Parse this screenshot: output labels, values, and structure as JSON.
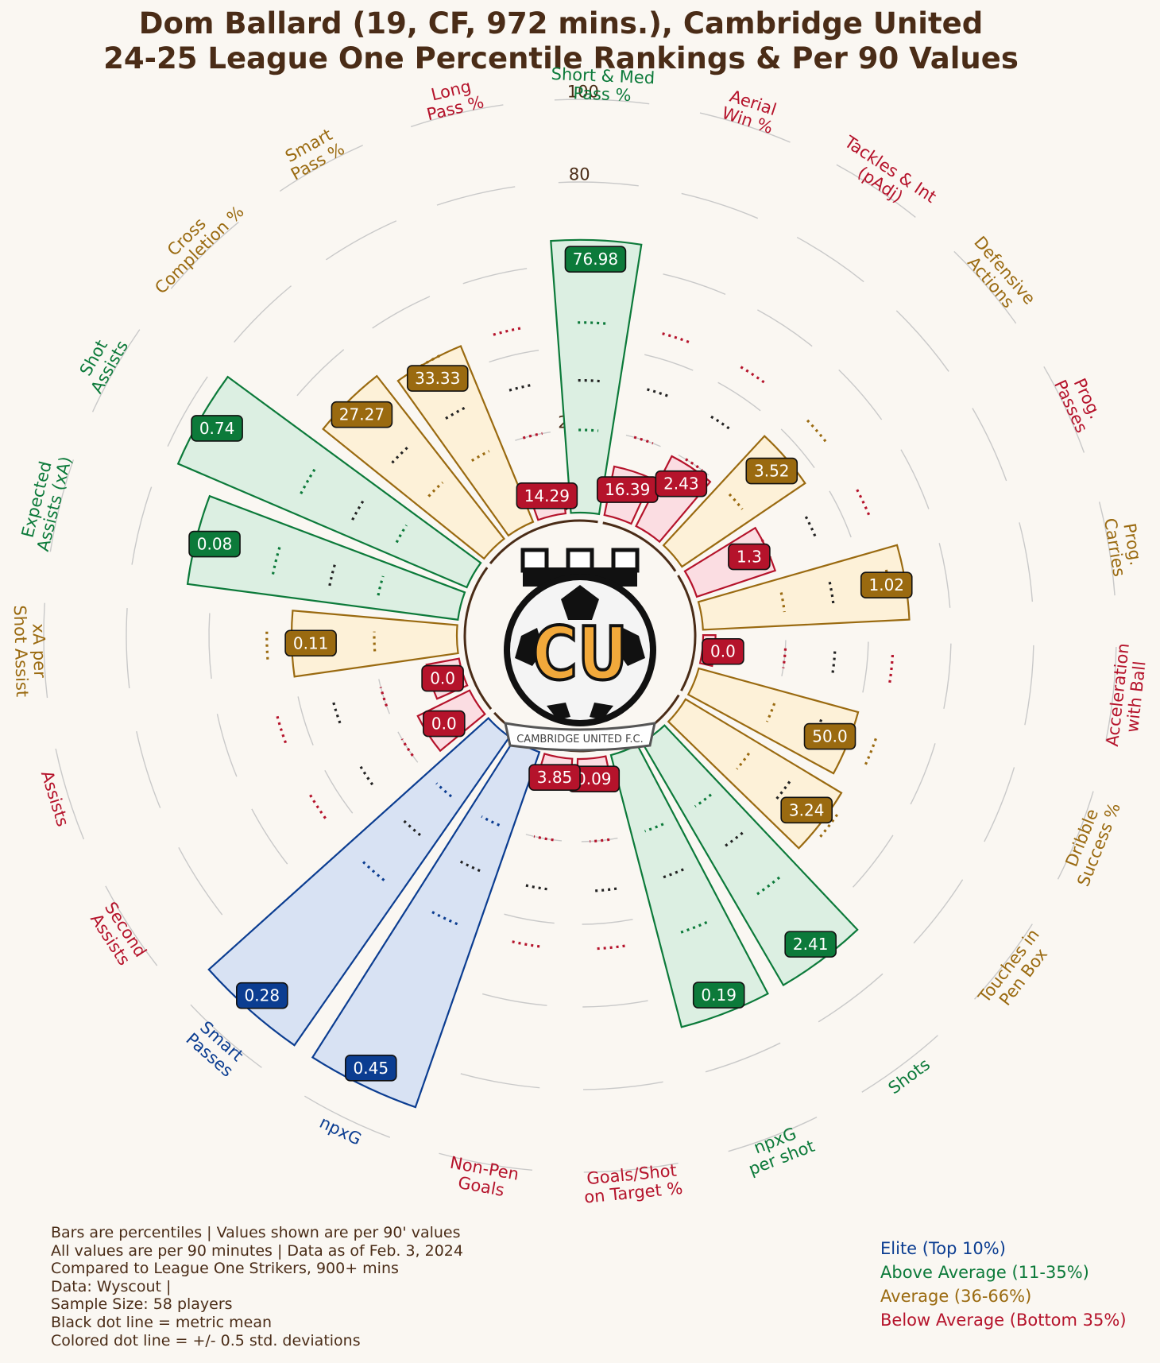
{
  "title": {
    "line1": "Dom Ballard (19, CF, 972 mins.), Cambridge United",
    "line2": "24-25 League One Percentile Rankings & Per 90 Values"
  },
  "logo": {
    "icon": "cambridge-united-crest-icon",
    "letters": "CU",
    "text": "CAMBRIDGE UNITED F.C."
  },
  "colors": {
    "elite": "#0b3d91",
    "above": "#0c7a3a",
    "average": "#9a6a10",
    "below": "#b5132b",
    "text": "#4a2c17"
  },
  "chart_data": {
    "type": "radial_bar",
    "radial_axis": {
      "range": [
        0,
        100
      ],
      "ticks": [
        "0",
        "20",
        "40",
        "60",
        "80",
        "100"
      ]
    },
    "metrics": [
      {
        "name": "Aerial\nWin %",
        "label": "16.39",
        "percentile": 12,
        "tier": "below"
      },
      {
        "name": "Tackles & Int\n(pAdj)",
        "label": "2.43",
        "percentile": 19,
        "tier": "below"
      },
      {
        "name": "Defensive\nActions",
        "label": "3.52",
        "percentile": 36,
        "tier": "average"
      },
      {
        "name": "Prog.\nPasses",
        "label": "1.3",
        "percentile": 20,
        "tier": "below"
      },
      {
        "name": "Prog.\nCarries",
        "label": "1.02",
        "percentile": 50,
        "tier": "average"
      },
      {
        "name": "Acceleration\nwith Ball",
        "label": "0.0",
        "percentile": 3,
        "tier": "below"
      },
      {
        "name": "Dribble\nSuccess %",
        "label": "50.0",
        "percentile": 40,
        "tier": "average"
      },
      {
        "name": "Touches in\nPen Box",
        "label": "3.24",
        "percentile": 44,
        "tier": "average"
      },
      {
        "name": "Shots",
        "label": "2.41",
        "percentile": 68,
        "tier": "above"
      },
      {
        "name": "npxG\nper shot",
        "label": "0.19",
        "percentile": 68,
        "tier": "above"
      },
      {
        "name": "Goals/Shot\non Target %",
        "label": "0.09",
        "percentile": 5,
        "tier": "below"
      },
      {
        "name": "Non-Pen\nGoals",
        "label": "3.85",
        "percentile": 3,
        "tier": "below"
      },
      {
        "name": "npxG",
        "label": "0.45",
        "percentile": 91,
        "tier": "elite"
      },
      {
        "name": "Smart\nPasses",
        "label": "0.28",
        "percentile": 91,
        "tier": "elite"
      },
      {
        "name": "Second\nAssists",
        "label": "0.0",
        "percentile": 14,
        "tier": "below"
      },
      {
        "name": "Assists",
        "label": "0.0",
        "percentile": 8,
        "tier": "below"
      },
      {
        "name": "xA per\nShot Assist",
        "label": "0.11",
        "percentile": 40,
        "tier": "average"
      },
      {
        "name": "Expected\nAssists (xA)",
        "label": "0.08",
        "percentile": 66,
        "tier": "above"
      },
      {
        "name": "Shot\nAssists",
        "label": "0.74",
        "percentile": 76,
        "tier": "above"
      },
      {
        "name": "Cross\nCompletion %",
        "label": "27.27",
        "percentile": 50,
        "tier": "average"
      },
      {
        "name": "Smart\nPass %",
        "label": "33.33",
        "percentile": 46,
        "tier": "average"
      },
      {
        "name": "Long\nPass %",
        "label": "14.29",
        "percentile": 5,
        "tier": "below"
      },
      {
        "name": "Short & Med\nPass %",
        "label": "76.98",
        "percentile": 66,
        "tier": "above"
      }
    ],
    "groups": [
      [
        0,
        2
      ],
      [
        3,
        6
      ],
      [
        7,
        11
      ],
      [
        12,
        13
      ],
      [
        14,
        18
      ],
      [
        19,
        22
      ]
    ]
  },
  "footnotes": [
    "Bars are percentiles | Values shown are per 90' values",
    "All values are per 90 minutes | Data as of Feb. 3, 2024",
    "Compared to League One Strikers, 900+ mins",
    "Data: Wyscout |",
    "Sample Size: 58 players",
    "Black dot line = metric mean",
    "Colored dot line = +/- 0.5 std. deviations"
  ],
  "legend": [
    {
      "label": "Elite (Top 10%)",
      "tier": "elite"
    },
    {
      "label": "Above Average (11-35%)",
      "tier": "above"
    },
    {
      "label": "Average (36-66%)",
      "tier": "average"
    },
    {
      "label": "Below Average (Bottom 35%)",
      "tier": "below"
    }
  ]
}
